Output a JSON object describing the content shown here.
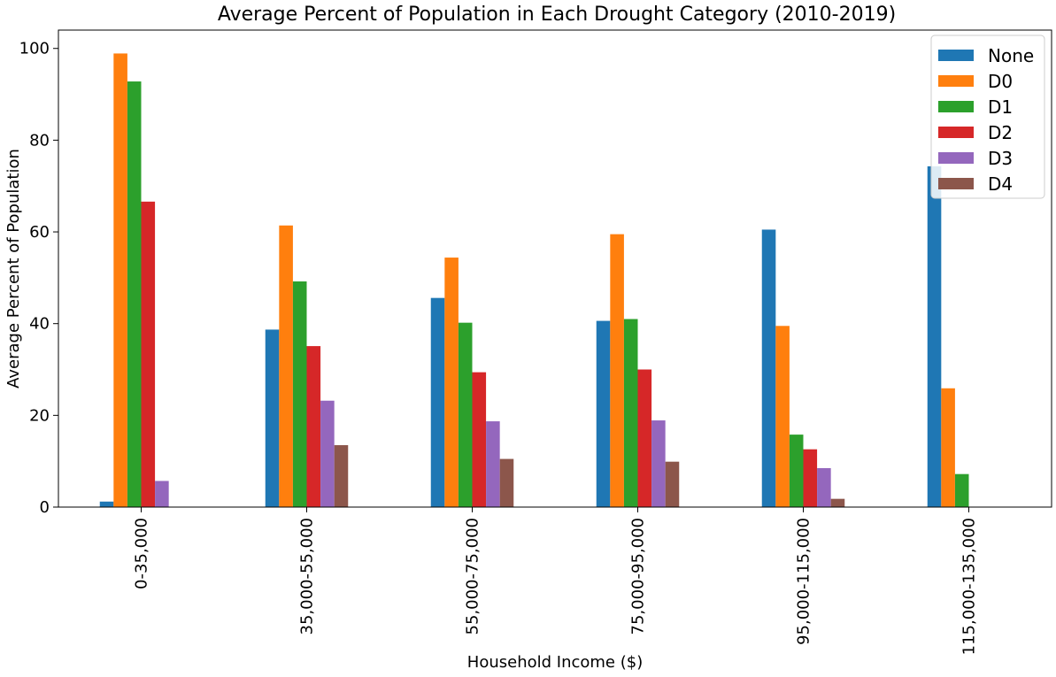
{
  "chart_data": {
    "type": "bar",
    "title": "Average Percent of Population in Each Drought Category (2010-2019)",
    "xlabel": "Household Income ($)",
    "ylabel": "Average Percent of Population",
    "categories": [
      "0-35,000",
      "35,000-55,000",
      "55,000-75,000",
      "75,000-95,000",
      "95,000-115,000",
      "115,000-135,000"
    ],
    "ylim": [
      0,
      104
    ],
    "yticks": [
      0,
      20,
      40,
      60,
      80,
      100
    ],
    "grid": false,
    "legend_position": "top-right",
    "series": [
      {
        "name": "None",
        "color": "#1f77b4",
        "values": [
          1.2,
          38.7,
          45.6,
          40.6,
          60.5,
          74.3
        ]
      },
      {
        "name": "D0",
        "color": "#ff7f0e",
        "values": [
          98.9,
          61.4,
          54.4,
          59.5,
          39.5,
          25.9
        ]
      },
      {
        "name": "D1",
        "color": "#2ca02c",
        "values": [
          92.8,
          49.2,
          40.2,
          41.0,
          15.8,
          7.2
        ]
      },
      {
        "name": "D2",
        "color": "#d62728",
        "values": [
          66.6,
          35.1,
          29.4,
          30.0,
          12.6,
          0
        ]
      },
      {
        "name": "D3",
        "color": "#9467bd",
        "values": [
          5.7,
          23.2,
          18.7,
          18.9,
          8.5,
          0
        ]
      },
      {
        "name": "D4",
        "color": "#8c564b",
        "values": [
          0,
          13.5,
          10.5,
          9.9,
          1.8,
          0
        ]
      }
    ]
  }
}
